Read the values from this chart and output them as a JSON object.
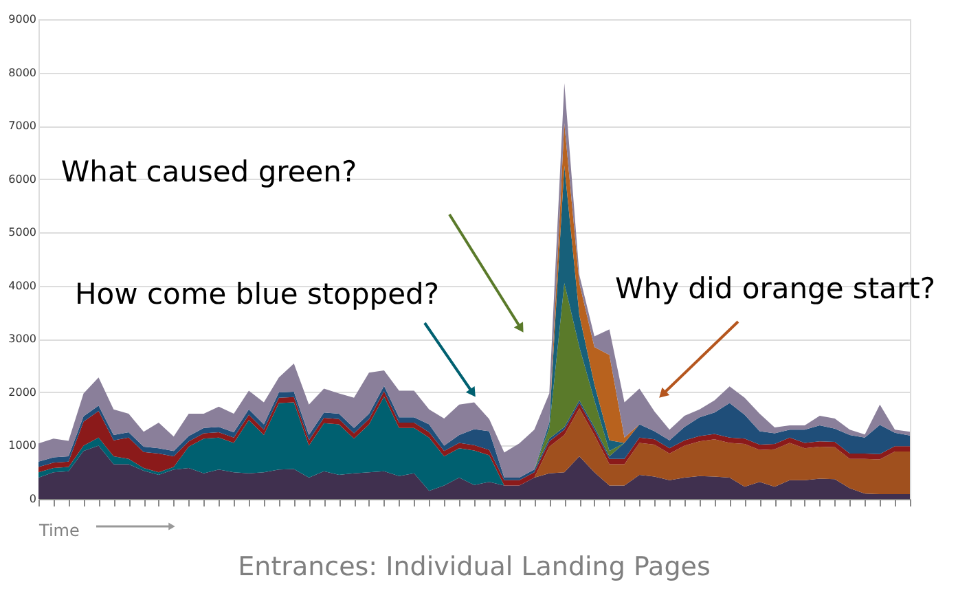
{
  "chart_data": {
    "type": "area",
    "stacked": true,
    "title": "Entrances: Individual Landing Pages",
    "xlabel": "Time",
    "categories": [
      null,
      null,
      null,
      null,
      null,
      null,
      null,
      null,
      null,
      null,
      null,
      null,
      null,
      null,
      null,
      null,
      null,
      null,
      null,
      null,
      null,
      null,
      null,
      null,
      null,
      null,
      null,
      null,
      null,
      null,
      null,
      null,
      null,
      null,
      null,
      null,
      null,
      null,
      null,
      null,
      null,
      null,
      null,
      null,
      null,
      null,
      null,
      null,
      null,
      null,
      null,
      null,
      null,
      null,
      null,
      null,
      null,
      null,
      null
    ],
    "series": [
      {
        "color": "#40304f",
        "values": [
          400,
          500,
          520,
          900,
          1000,
          650,
          650,
          530,
          450,
          550,
          580,
          480,
          550,
          500,
          480,
          500,
          550,
          560,
          400,
          520,
          450,
          480,
          500,
          520,
          430,
          480,
          150,
          250,
          400,
          260,
          320,
          250,
          250,
          400,
          480,
          500,
          800,
          500,
          250,
          250,
          450,
          420,
          350,
          400,
          430,
          420,
          400,
          230,
          320,
          230,
          350,
          350,
          380,
          370,
          200,
          100,
          90,
          90,
          90
        ]
      },
      {
        "color": "#a0501e",
        "values": [
          0,
          0,
          0,
          0,
          0,
          0,
          0,
          0,
          0,
          0,
          0,
          0,
          0,
          0,
          0,
          0,
          0,
          0,
          0,
          0,
          0,
          0,
          0,
          0,
          0,
          0,
          0,
          0,
          0,
          0,
          0,
          0,
          0,
          0,
          500,
          700,
          900,
          700,
          400,
          400,
          600,
          600,
          500,
          600,
          650,
          700,
          650,
          800,
          600,
          700,
          700,
          600,
          600,
          600,
          550,
          650,
          650,
          800,
          800
        ]
      },
      {
        "color": "#006070",
        "values": [
          100,
          80,
          80,
          100,
          150,
          150,
          100,
          50,
          50,
          50,
          400,
          650,
          600,
          550,
          1000,
          700,
          1250,
          1250,
          600,
          900,
          950,
          650,
          900,
          1400,
          900,
          850,
          1000,
          550,
          550,
          650,
          500,
          0,
          0,
          0,
          0,
          0,
          0,
          0,
          0,
          0,
          0,
          0,
          0,
          0,
          0,
          0,
          0,
          0,
          0,
          0,
          0,
          0,
          0,
          0,
          0,
          0,
          0,
          0,
          0
        ]
      },
      {
        "color": "#8b1a1a",
        "values": [
          100,
          100,
          100,
          450,
          500,
          300,
          400,
          300,
          350,
          200,
          100,
          100,
          100,
          100,
          100,
          100,
          100,
          100,
          100,
          100,
          100,
          100,
          100,
          100,
          100,
          100,
          100,
          100,
          100,
          100,
          100,
          100,
          100,
          100,
          100,
          100,
          100,
          100,
          100,
          100,
          100,
          100,
          100,
          100,
          100,
          100,
          100,
          100,
          100,
          100,
          100,
          100,
          100,
          100,
          100,
          100,
          100,
          100,
          100
        ]
      },
      {
        "color": "#1f4e79",
        "values": [
          100,
          100,
          100,
          100,
          100,
          100,
          100,
          100,
          100,
          100,
          100,
          100,
          100,
          100,
          100,
          100,
          100,
          100,
          100,
          100,
          100,
          100,
          100,
          100,
          100,
          100,
          150,
          100,
          150,
          300,
          350,
          50,
          50,
          50,
          50,
          50,
          50,
          50,
          50,
          300,
          250,
          150,
          150,
          250,
          350,
          400,
          650,
          450,
          250,
          200,
          150,
          250,
          300,
          250,
          350,
          300,
          550,
          250,
          200
        ]
      },
      {
        "color": "#5a7a2a",
        "values": [
          0,
          0,
          0,
          0,
          0,
          0,
          0,
          0,
          0,
          0,
          0,
          0,
          0,
          0,
          0,
          0,
          0,
          0,
          0,
          0,
          0,
          0,
          0,
          0,
          0,
          0,
          0,
          0,
          0,
          0,
          0,
          0,
          0,
          0,
          200,
          2700,
          1000,
          500,
          100,
          0,
          0,
          0,
          0,
          0,
          0,
          0,
          0,
          0,
          0,
          0,
          0,
          0,
          0,
          0,
          0,
          0,
          0,
          0,
          0
        ]
      },
      {
        "color": "#17607a",
        "values": [
          0,
          0,
          0,
          0,
          0,
          0,
          0,
          0,
          0,
          0,
          0,
          0,
          0,
          0,
          0,
          0,
          0,
          0,
          0,
          0,
          0,
          0,
          0,
          0,
          0,
          0,
          0,
          0,
          0,
          0,
          0,
          0,
          0,
          0,
          100,
          2200,
          600,
          300,
          200,
          0,
          0,
          0,
          0,
          0,
          0,
          0,
          0,
          0,
          0,
          0,
          0,
          0,
          0,
          0,
          0,
          0,
          0,
          0,
          0
        ]
      },
      {
        "color": "#b8621e",
        "values": [
          0,
          0,
          0,
          0,
          0,
          0,
          0,
          0,
          0,
          0,
          0,
          0,
          0,
          0,
          0,
          0,
          0,
          0,
          0,
          0,
          0,
          0,
          0,
          0,
          0,
          0,
          0,
          0,
          0,
          0,
          0,
          0,
          0,
          0,
          0,
          800,
          600,
          700,
          1600,
          100,
          0,
          0,
          0,
          0,
          0,
          0,
          0,
          0,
          0,
          0,
          0,
          0,
          0,
          0,
          0,
          0,
          0,
          0,
          0
        ]
      },
      {
        "color": "#8a7f9a",
        "values": [
          340,
          350,
          290,
          430,
          530,
          480,
          350,
          280,
          480,
          270,
          420,
          270,
          380,
          350,
          350,
          410,
          280,
          530,
          570,
          450,
          380,
          570,
          770,
          290,
          500,
          500,
          280,
          510,
          570,
          500,
          230,
          470,
          640,
          750,
          550,
          750,
          150,
          200,
          480,
          660,
          670,
          370,
          200,
          210,
          150,
          230,
          310,
          320,
          330,
          110,
          80,
          80,
          180,
          190,
          100,
          60,
          380,
          60,
          70
        ]
      }
    ],
    "ylim": [
      0,
      9000
    ],
    "yticks": [
      0,
      1000,
      2000,
      3000,
      4000,
      5000,
      6000,
      7000,
      8000,
      9000
    ],
    "grid": "y",
    "legend": false,
    "tick_labels": "y",
    "annotations": [
      "What caused green?",
      "How come blue stopped?",
      "Why did orange start?"
    ]
  }
}
